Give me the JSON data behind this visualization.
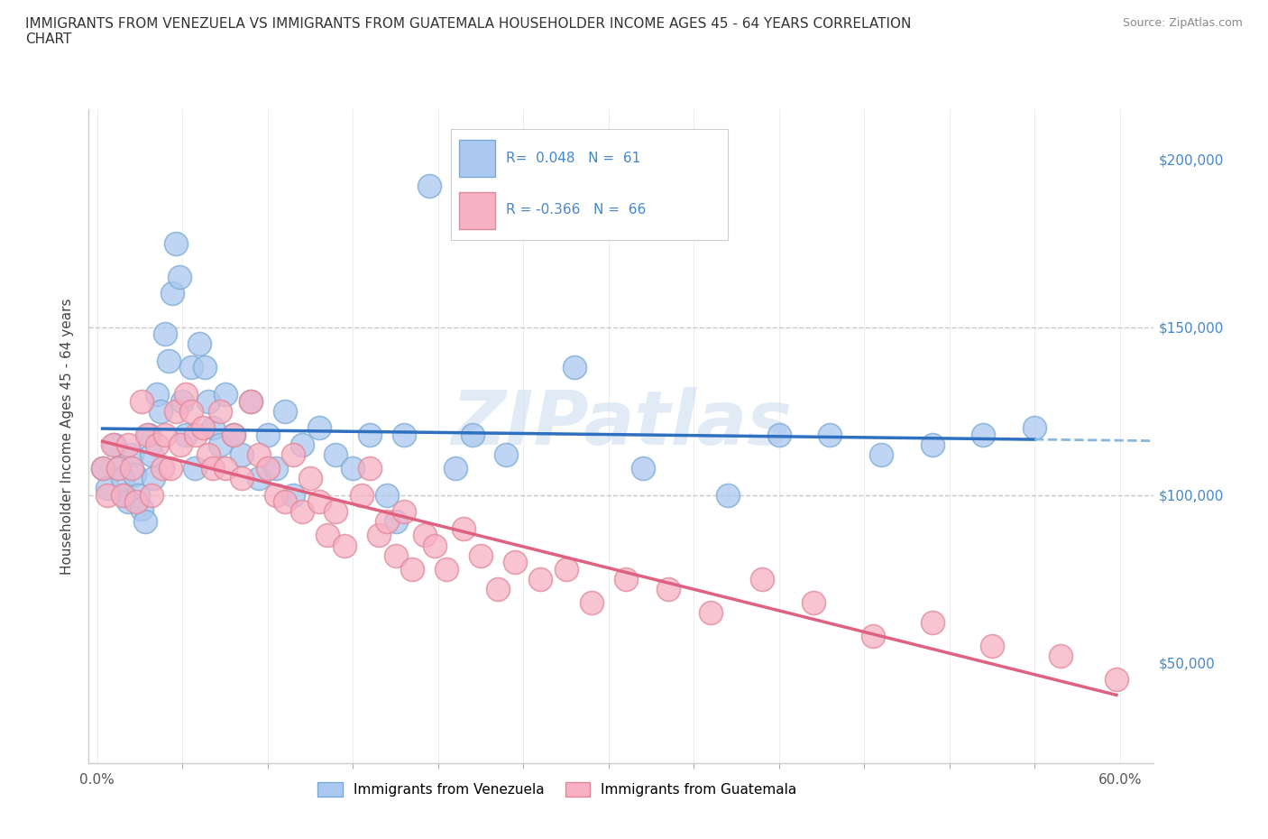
{
  "title": "IMMIGRANTS FROM VENEZUELA VS IMMIGRANTS FROM GUATEMALA HOUSEHOLDER INCOME AGES 45 - 64 YEARS CORRELATION\nCHART",
  "source_text": "Source: ZipAtlas.com",
  "ylabel": "Householder Income Ages 45 - 64 years",
  "xlim": [
    -0.005,
    0.62
  ],
  "ylim": [
    20000,
    215000
  ],
  "xtick_minor_positions": [
    0.0,
    0.05,
    0.1,
    0.15,
    0.2,
    0.25,
    0.3,
    0.35,
    0.4,
    0.45,
    0.5,
    0.55,
    0.6
  ],
  "yticks": [
    50000,
    100000,
    150000,
    200000
  ],
  "yticklabels": [
    "$50,000",
    "$100,000",
    "$150,000",
    "$200,000"
  ],
  "hlines": [
    100000,
    150000
  ],
  "venezuela_color": "#aac8f0",
  "venezuela_edge": "#7aaad4",
  "guatemala_color": "#f8b0c4",
  "guatemala_edge": "#e08898",
  "venezuela_line_color": "#3070c0",
  "venezuela_line_dash_color": "#88b8e0",
  "guatemala_line_color": "#e06080",
  "legend_label_1": "Immigrants from Venezuela",
  "legend_label_2": "Immigrants from Guatemala",
  "R1": 0.048,
  "N1": 61,
  "R2": -0.366,
  "N2": 66,
  "watermark": "ZIPatlas",
  "venezuela_x": [
    0.003,
    0.006,
    0.01,
    0.012,
    0.015,
    0.016,
    0.018,
    0.02,
    0.022,
    0.024,
    0.026,
    0.028,
    0.03,
    0.032,
    0.033,
    0.035,
    0.037,
    0.04,
    0.042,
    0.044,
    0.046,
    0.048,
    0.05,
    0.052,
    0.055,
    0.057,
    0.06,
    0.063,
    0.065,
    0.068,
    0.072,
    0.075,
    0.08,
    0.085,
    0.09,
    0.095,
    0.1,
    0.105,
    0.11,
    0.115,
    0.12,
    0.13,
    0.14,
    0.15,
    0.16,
    0.17,
    0.175,
    0.18,
    0.195,
    0.21,
    0.22,
    0.24,
    0.28,
    0.32,
    0.37,
    0.4,
    0.43,
    0.46,
    0.49,
    0.52,
    0.55
  ],
  "venezuela_y": [
    108000,
    102000,
    115000,
    108000,
    105000,
    100000,
    98000,
    112000,
    106000,
    100000,
    96000,
    92000,
    118000,
    112000,
    105000,
    130000,
    125000,
    148000,
    140000,
    160000,
    175000,
    165000,
    128000,
    118000,
    138000,
    108000,
    145000,
    138000,
    128000,
    120000,
    115000,
    130000,
    118000,
    112000,
    128000,
    105000,
    118000,
    108000,
    125000,
    100000,
    115000,
    120000,
    112000,
    108000,
    118000,
    100000,
    92000,
    118000,
    192000,
    108000,
    118000,
    112000,
    138000,
    108000,
    100000,
    118000,
    118000,
    112000,
    115000,
    118000,
    120000
  ],
  "guatemala_x": [
    0.003,
    0.006,
    0.009,
    0.012,
    0.015,
    0.018,
    0.02,
    0.023,
    0.026,
    0.029,
    0.032,
    0.035,
    0.038,
    0.04,
    0.043,
    0.046,
    0.049,
    0.052,
    0.055,
    0.058,
    0.062,
    0.065,
    0.068,
    0.072,
    0.075,
    0.08,
    0.085,
    0.09,
    0.095,
    0.1,
    0.105,
    0.11,
    0.115,
    0.12,
    0.125,
    0.13,
    0.135,
    0.14,
    0.145,
    0.155,
    0.16,
    0.165,
    0.17,
    0.175,
    0.18,
    0.185,
    0.192,
    0.198,
    0.205,
    0.215,
    0.225,
    0.235,
    0.245,
    0.26,
    0.275,
    0.29,
    0.31,
    0.335,
    0.36,
    0.39,
    0.42,
    0.455,
    0.49,
    0.525,
    0.565,
    0.598
  ],
  "guatemala_y": [
    108000,
    100000,
    115000,
    108000,
    100000,
    115000,
    108000,
    98000,
    128000,
    118000,
    100000,
    115000,
    108000,
    118000,
    108000,
    125000,
    115000,
    130000,
    125000,
    118000,
    120000,
    112000,
    108000,
    125000,
    108000,
    118000,
    105000,
    128000,
    112000,
    108000,
    100000,
    98000,
    112000,
    95000,
    105000,
    98000,
    88000,
    95000,
    85000,
    100000,
    108000,
    88000,
    92000,
    82000,
    95000,
    78000,
    88000,
    85000,
    78000,
    90000,
    82000,
    72000,
    80000,
    75000,
    78000,
    68000,
    75000,
    72000,
    65000,
    75000,
    68000,
    58000,
    62000,
    55000,
    52000,
    45000
  ]
}
